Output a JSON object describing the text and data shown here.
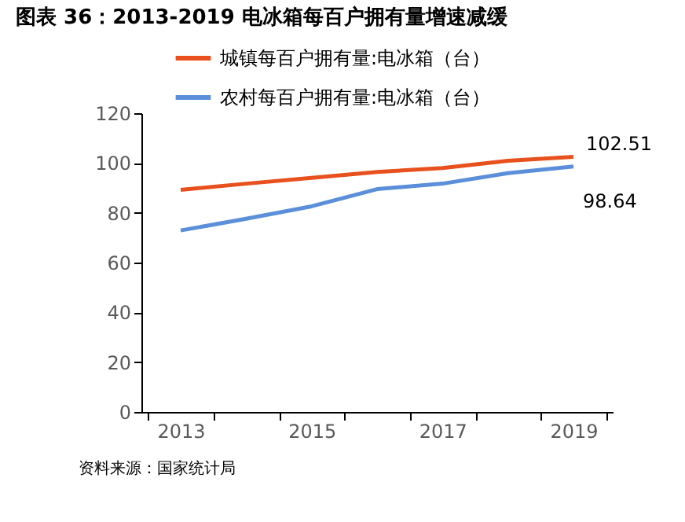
{
  "chart_data": {
    "type": "line",
    "title": "图表 36：2013-2019 电冰箱每百户拥有量增速减缓",
    "categories": [
      "2013",
      null,
      "2015",
      null,
      "2017",
      null,
      "2019"
    ],
    "series": [
      {
        "name": "城镇每百户拥有量:电冰箱（台）",
        "color": "#e8501e",
        "values": [
          89.2,
          91.7,
          94.0,
          96.4,
          98.0,
          100.9,
          102.51
        ],
        "value_labels": [
          null,
          null,
          null,
          null,
          null,
          null,
          "102.51"
        ]
      },
      {
        "name": "农村每百户拥有量:电冰箱（台）",
        "color": "#5b8fd9",
        "values": [
          72.9,
          77.6,
          82.6,
          89.5,
          91.7,
          95.9,
          98.64
        ],
        "value_labels": [
          null,
          null,
          null,
          null,
          null,
          null,
          "98.64"
        ]
      }
    ],
    "ylim": [
      0,
      120
    ],
    "yticks": [
      0,
      20,
      40,
      60,
      80,
      100,
      120
    ],
    "grid": false,
    "legend": "top left",
    "annotations": [
      "资料来源：国家统计局"
    ]
  }
}
